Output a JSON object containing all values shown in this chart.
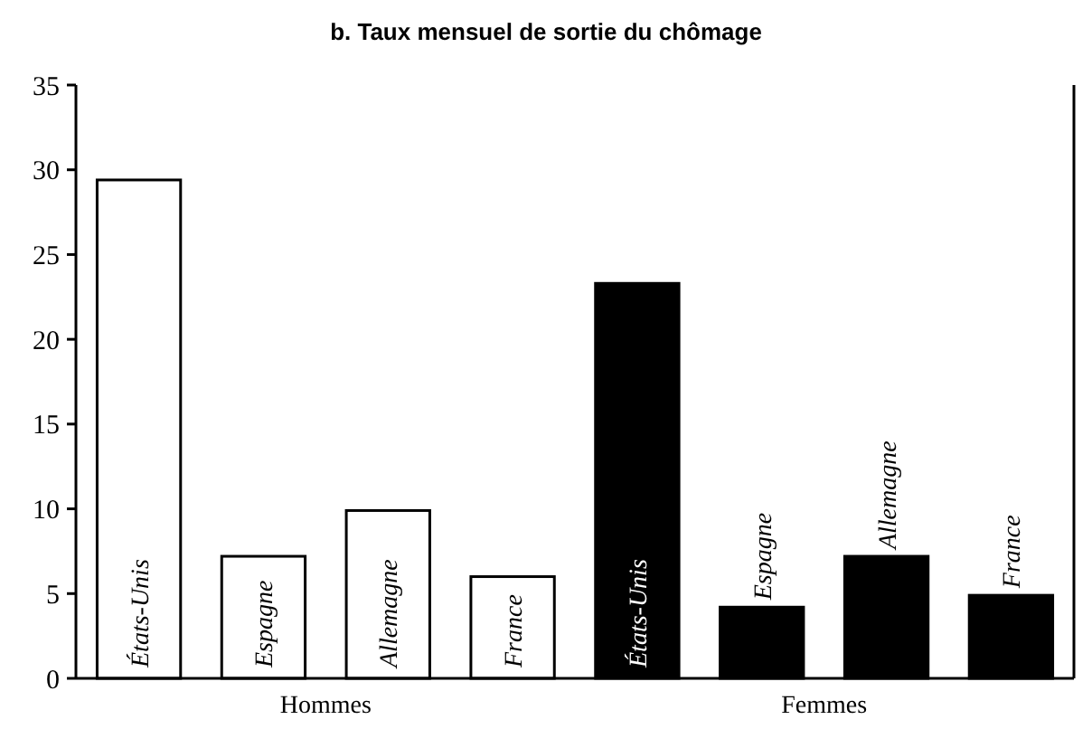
{
  "chart_data": {
    "type": "bar",
    "title": "b. Taux mensuel de sortie du chômage",
    "categories": [
      "États-Unis",
      "Espagne",
      "Allemagne",
      "France",
      "États-Unis",
      "Espagne",
      "Allemagne",
      "France"
    ],
    "series": [
      {
        "name": "Hommes",
        "color": "#ffffff",
        "values": [
          29.4,
          7.2,
          9.9,
          6.0,
          null,
          null,
          null,
          null
        ]
      },
      {
        "name": "Femmes",
        "color": "#000000",
        "values": [
          null,
          null,
          null,
          null,
          23.3,
          4.2,
          7.2,
          4.9
        ]
      }
    ],
    "ylim": [
      0,
      35
    ],
    "yticks": [
      0,
      5,
      10,
      15,
      20,
      25,
      30,
      35
    ],
    "grid": false,
    "legend": false
  }
}
